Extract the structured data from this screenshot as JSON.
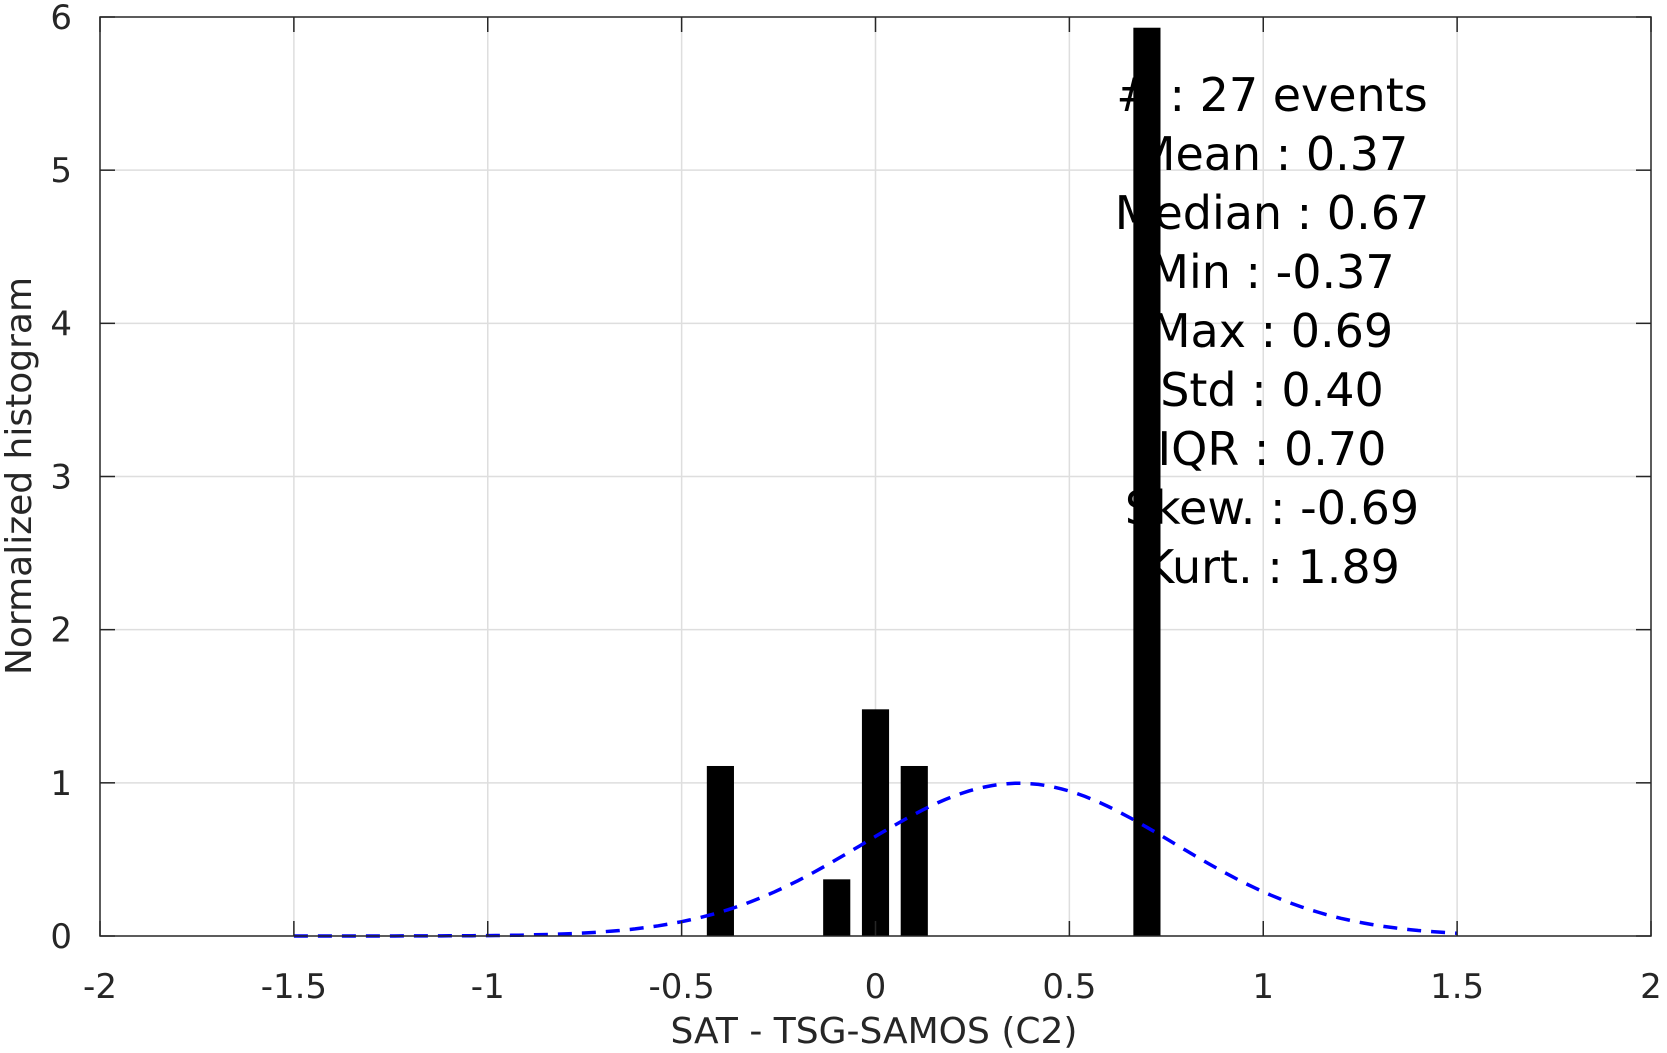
{
  "chart_data": {
    "type": "bar",
    "xlabel": "SAT - TSG-SAMOS (C2)",
    "ylabel": "Normalized histogram",
    "xlim": [
      -2,
      2
    ],
    "ylim": [
      0,
      6
    ],
    "grid": true,
    "x_ticks": [
      -2,
      -1.5,
      -1,
      -0.5,
      0,
      0.5,
      1,
      1.5,
      2
    ],
    "x_tick_labels": [
      "-2",
      "-1.5",
      "-1",
      "-0.5",
      "0",
      "0.5",
      "1",
      "1.5",
      "2"
    ],
    "y_ticks": [
      0,
      1,
      2,
      3,
      4,
      5,
      6
    ],
    "y_tick_labels": [
      "0",
      "1",
      "2",
      "3",
      "4",
      "5",
      "6"
    ],
    "bars": [
      {
        "center": -0.4,
        "width": 0.07,
        "value": 1.11
      },
      {
        "center": -0.1,
        "width": 0.07,
        "value": 0.37
      },
      {
        "center": 0.0,
        "width": 0.07,
        "value": 1.48
      },
      {
        "center": 0.1,
        "width": 0.07,
        "value": 1.11
      },
      {
        "center": 0.7,
        "width": 0.07,
        "value": 5.93
      }
    ],
    "fit_curve": {
      "style": "dashed",
      "color": "#0000ff",
      "mean": 0.37,
      "std": 0.4,
      "x_range": [
        -1.5,
        1.5
      ]
    },
    "bar_color": "#000000",
    "stats_lines": [
      "#  : 27 events",
      "Mean : 0.37",
      "Median : 0.67",
      "Min : -0.37",
      "Max : 0.69",
      "Std : 0.40",
      "IQR : 0.70",
      "Skew. : -0.69",
      "Kurt. : 1.89"
    ]
  }
}
